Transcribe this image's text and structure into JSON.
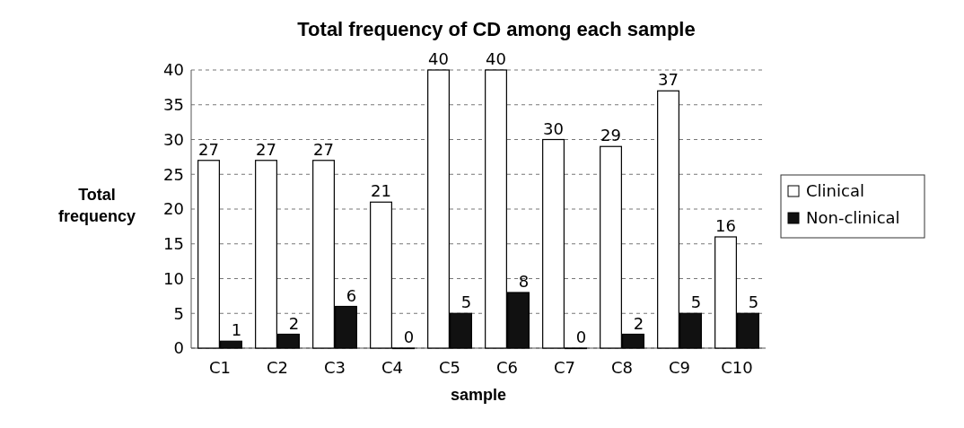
{
  "chart_data": {
    "type": "bar",
    "title": "Total frequency of CD among each sample",
    "xlabel": "sample",
    "ylabel": "Total frequency",
    "categories": [
      "C1",
      "C2",
      "C3",
      "C4",
      "C5",
      "C6",
      "C7",
      "C8",
      "C9",
      "C10"
    ],
    "series": [
      {
        "name": "Clinical",
        "color": "#ffffff",
        "values": [
          27,
          27,
          27,
          21,
          40,
          40,
          30,
          29,
          37,
          16
        ]
      },
      {
        "name": "Non-clinical",
        "color": "#111111",
        "values": [
          1,
          2,
          6,
          0,
          5,
          8,
          0,
          2,
          5,
          5
        ]
      }
    ],
    "ylim": [
      0,
      40
    ],
    "yticks": [
      0,
      5,
      10,
      15,
      20,
      25,
      30,
      35,
      40
    ],
    "grid": "y",
    "legend": "right",
    "data_labels": true
  }
}
